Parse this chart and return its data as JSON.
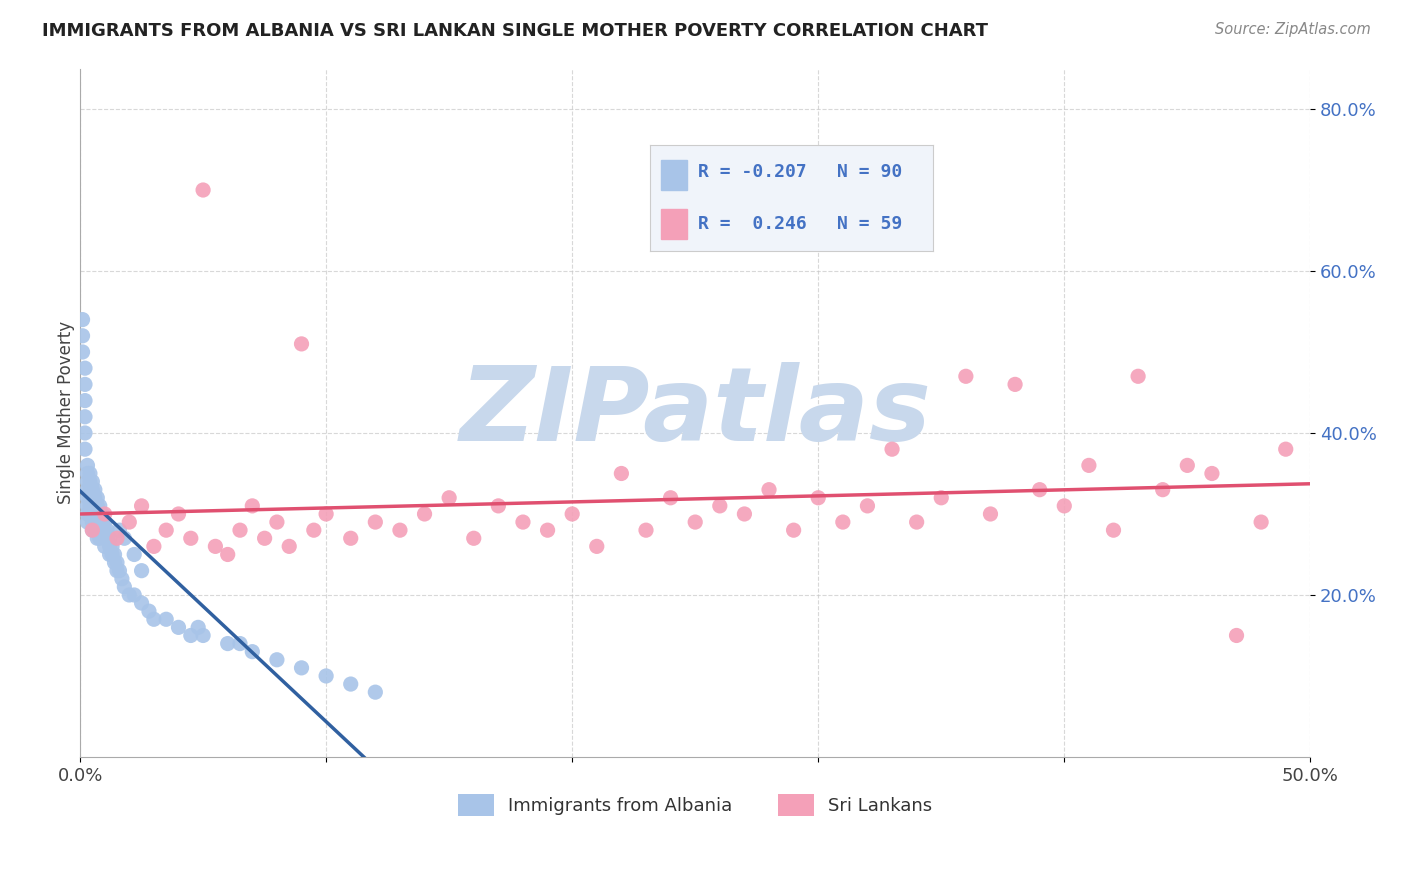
{
  "title": "IMMIGRANTS FROM ALBANIA VS SRI LANKAN SINGLE MOTHER POVERTY CORRELATION CHART",
  "source_text": "Source: ZipAtlas.com",
  "ylabel": "Single Mother Poverty",
  "xlim": [
    0,
    0.5
  ],
  "ylim": [
    0,
    0.85
  ],
  "yticks": [
    0.2,
    0.4,
    0.6,
    0.8
  ],
  "ytick_labels": [
    "20.0%",
    "40.0%",
    "60.0%",
    "80.0%"
  ],
  "xticks": [
    0.0,
    0.1,
    0.2,
    0.3,
    0.4,
    0.5
  ],
  "xtick_labels": [
    "0.0%",
    "",
    "",
    "",
    "",
    "50.0%"
  ],
  "color_albania": "#a8c4e8",
  "color_srilanka": "#f4a0b8",
  "color_trend_albania_solid": "#3060a0",
  "color_trend_albania_dashed": "#90b0d0",
  "color_trend_srilanka": "#e05070",
  "watermark": "ZIPatlas",
  "watermark_color": "#c8d8ec",
  "legend_text_color": "#4472c4",
  "background_color": "#ffffff",
  "plot_bg_color": "#ffffff",
  "grid_color": "#c8c8c8",
  "albania_x": [
    0.001,
    0.001,
    0.001,
    0.002,
    0.002,
    0.002,
    0.002,
    0.002,
    0.002,
    0.003,
    0.003,
    0.003,
    0.003,
    0.003,
    0.003,
    0.003,
    0.003,
    0.004,
    0.004,
    0.004,
    0.004,
    0.004,
    0.004,
    0.005,
    0.005,
    0.005,
    0.005,
    0.005,
    0.005,
    0.005,
    0.006,
    0.006,
    0.006,
    0.006,
    0.006,
    0.006,
    0.007,
    0.007,
    0.007,
    0.007,
    0.007,
    0.007,
    0.008,
    0.008,
    0.008,
    0.008,
    0.008,
    0.009,
    0.009,
    0.009,
    0.01,
    0.01,
    0.01,
    0.01,
    0.011,
    0.011,
    0.012,
    0.012,
    0.012,
    0.013,
    0.013,
    0.014,
    0.014,
    0.015,
    0.015,
    0.016,
    0.017,
    0.018,
    0.02,
    0.022,
    0.025,
    0.028,
    0.03,
    0.035,
    0.04,
    0.045,
    0.05,
    0.06,
    0.07,
    0.08,
    0.09,
    0.1,
    0.11,
    0.12,
    0.065,
    0.048,
    0.016,
    0.018,
    0.022,
    0.025
  ],
  "albania_y": [
    0.54,
    0.52,
    0.5,
    0.48,
    0.46,
    0.44,
    0.42,
    0.4,
    0.38,
    0.36,
    0.35,
    0.34,
    0.33,
    0.32,
    0.31,
    0.3,
    0.29,
    0.35,
    0.34,
    0.33,
    0.32,
    0.31,
    0.3,
    0.34,
    0.33,
    0.32,
    0.31,
    0.3,
    0.29,
    0.28,
    0.33,
    0.32,
    0.31,
    0.3,
    0.29,
    0.28,
    0.32,
    0.31,
    0.3,
    0.29,
    0.28,
    0.27,
    0.31,
    0.3,
    0.29,
    0.28,
    0.27,
    0.3,
    0.29,
    0.28,
    0.29,
    0.28,
    0.27,
    0.26,
    0.28,
    0.27,
    0.27,
    0.26,
    0.25,
    0.26,
    0.25,
    0.25,
    0.24,
    0.24,
    0.23,
    0.23,
    0.22,
    0.21,
    0.2,
    0.2,
    0.19,
    0.18,
    0.17,
    0.17,
    0.16,
    0.15,
    0.15,
    0.14,
    0.13,
    0.12,
    0.11,
    0.1,
    0.09,
    0.08,
    0.14,
    0.16,
    0.28,
    0.27,
    0.25,
    0.23
  ],
  "srilanka_x": [
    0.005,
    0.01,
    0.015,
    0.02,
    0.025,
    0.03,
    0.035,
    0.04,
    0.045,
    0.05,
    0.055,
    0.06,
    0.065,
    0.07,
    0.075,
    0.08,
    0.085,
    0.09,
    0.095,
    0.1,
    0.11,
    0.12,
    0.13,
    0.14,
    0.15,
    0.16,
    0.17,
    0.18,
    0.19,
    0.2,
    0.21,
    0.22,
    0.23,
    0.24,
    0.25,
    0.26,
    0.27,
    0.28,
    0.29,
    0.3,
    0.31,
    0.32,
    0.33,
    0.34,
    0.35,
    0.36,
    0.37,
    0.38,
    0.39,
    0.4,
    0.41,
    0.42,
    0.43,
    0.44,
    0.45,
    0.46,
    0.47,
    0.48,
    0.49
  ],
  "srilanka_y": [
    0.28,
    0.3,
    0.27,
    0.29,
    0.31,
    0.26,
    0.28,
    0.3,
    0.27,
    0.7,
    0.26,
    0.25,
    0.28,
    0.31,
    0.27,
    0.29,
    0.26,
    0.51,
    0.28,
    0.3,
    0.27,
    0.29,
    0.28,
    0.3,
    0.32,
    0.27,
    0.31,
    0.29,
    0.28,
    0.3,
    0.26,
    0.35,
    0.28,
    0.32,
    0.29,
    0.31,
    0.3,
    0.33,
    0.28,
    0.32,
    0.29,
    0.31,
    0.38,
    0.29,
    0.32,
    0.47,
    0.3,
    0.46,
    0.33,
    0.31,
    0.36,
    0.28,
    0.47,
    0.33,
    0.36,
    0.35,
    0.15,
    0.29,
    0.38
  ]
}
